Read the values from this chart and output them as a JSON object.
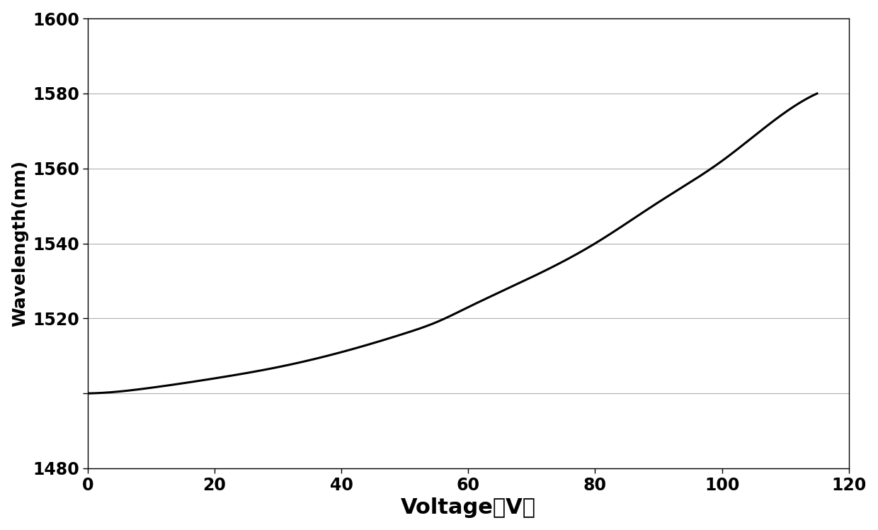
{
  "title": "",
  "xlabel": "Voltage（V）",
  "ylabel": "Wavelength(nm)",
  "xlim": [
    0,
    120
  ],
  "ylim": [
    1480,
    1600
  ],
  "xticks": [
    0,
    20,
    40,
    60,
    80,
    100,
    120
  ],
  "yticks": [
    1480,
    1500,
    1520,
    1540,
    1560,
    1580,
    1600
  ],
  "ytick_labels": [
    "1480",
    "",
    "1520",
    "1540",
    "1560",
    "1580",
    "1600"
  ],
  "line_color": "#000000",
  "line_width": 2.2,
  "background_color": "#ffffff",
  "grid_color": "#b0b0b0",
  "xlabel_fontsize": 22,
  "ylabel_fontsize": 18,
  "tick_fontsize": 17,
  "curve_points_x": [
    0,
    5,
    10,
    20,
    30,
    40,
    50,
    55,
    60,
    70,
    80,
    90,
    100,
    110,
    115
  ],
  "curve_points_y": [
    1500,
    1500.5,
    1501.5,
    1504,
    1507,
    1511,
    1516,
    1519,
    1523,
    1531,
    1540,
    1551,
    1562,
    1575,
    1580
  ]
}
